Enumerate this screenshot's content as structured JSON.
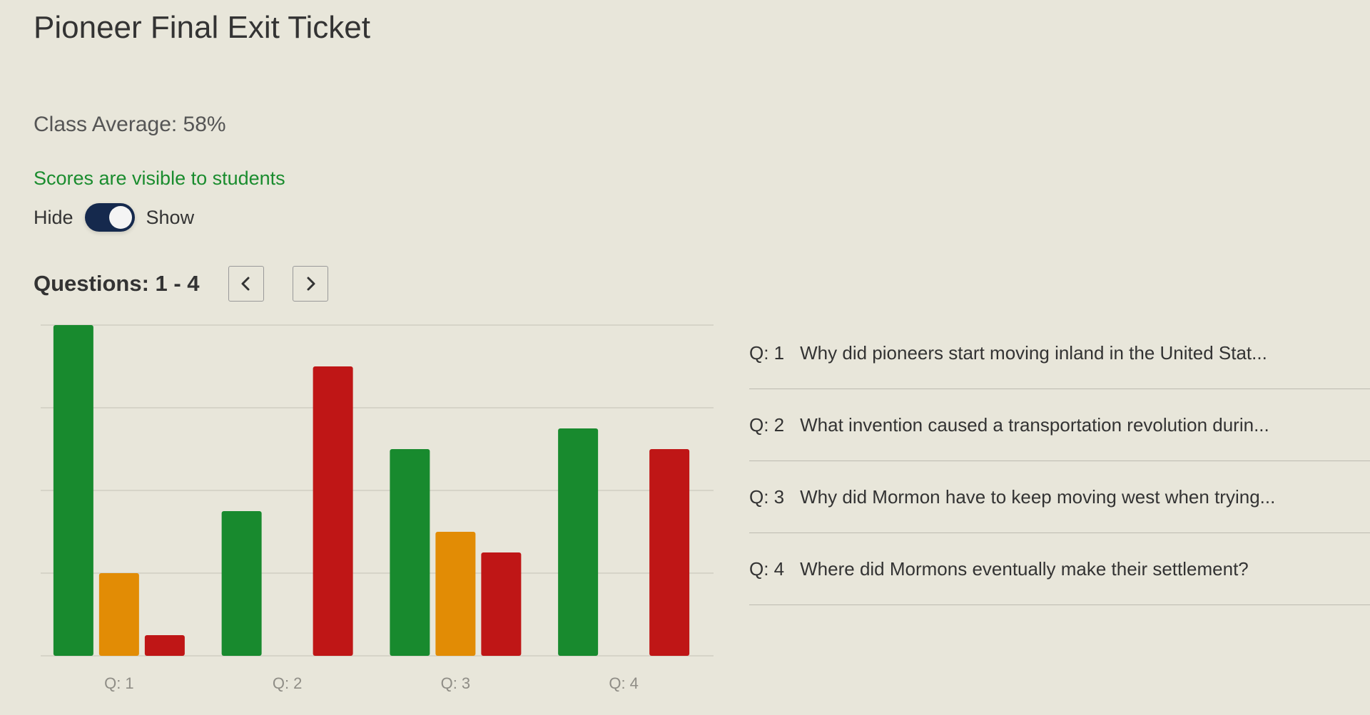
{
  "title": "Pioneer Final Exit Ticket",
  "class_average": "Class Average: 58%",
  "visibility_status": "Scores are visible to students",
  "visibility_color": "#1a8c2e",
  "toggle": {
    "hide_label": "Hide",
    "show_label": "Show",
    "state": "show",
    "track_color": "#15294d"
  },
  "questions_nav": {
    "label": "Questions: 1 - 4",
    "prev_icon": "chevron-left-icon",
    "next_icon": "chevron-right-icon"
  },
  "questions": [
    {
      "num": "Q: 1",
      "text": "Why did pioneers start moving inland in the United Stat..."
    },
    {
      "num": "Q: 2",
      "text": "What invention caused a transportation revolution durin..."
    },
    {
      "num": "Q: 3",
      "text": "Why did Mormon have to keep moving west when trying..."
    },
    {
      "num": "Q: 4",
      "text": "Where did Mormons eventually make their settlement?"
    }
  ],
  "chart_data": {
    "type": "bar",
    "categories": [
      "Q: 1",
      "Q: 2",
      "Q: 3",
      "Q: 4"
    ],
    "series": [
      {
        "color": "#188a2e",
        "values": [
          16,
          7,
          10,
          11
        ]
      },
      {
        "color": "#e28c05",
        "values": [
          4,
          0,
          6,
          0
        ]
      },
      {
        "color": "#bf1616",
        "values": [
          1,
          14,
          5,
          10
        ]
      }
    ],
    "ylim": [
      0,
      16
    ],
    "grid": true,
    "gridlines": 4,
    "legend": "none"
  }
}
